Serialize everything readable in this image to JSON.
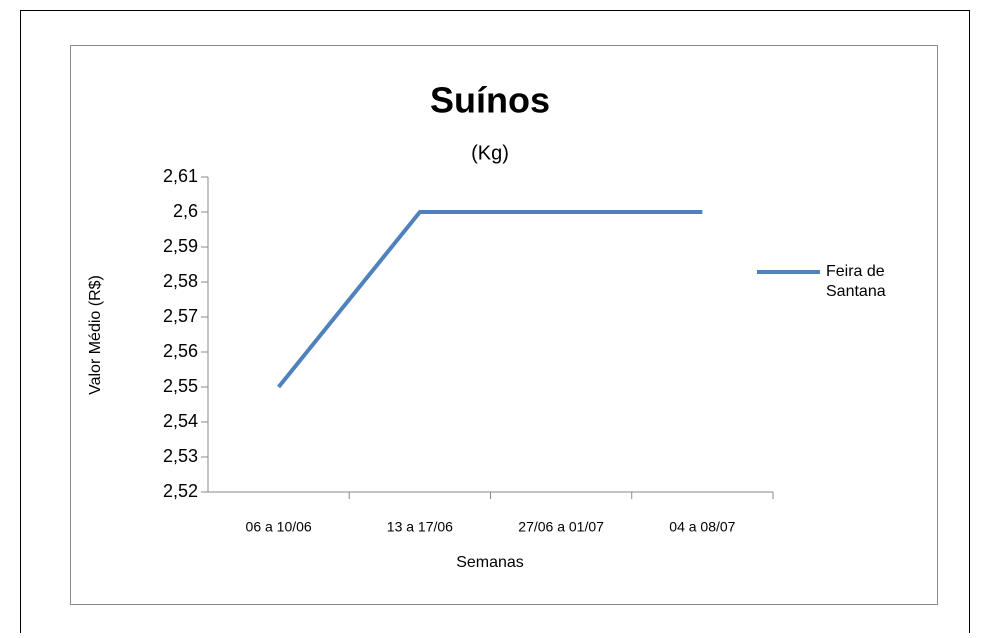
{
  "chart_data": {
    "type": "line",
    "title": "Suínos",
    "subtitle": "(Kg)",
    "x_label": "Semanas",
    "y_label": "Valor Médio (R$)",
    "categories": [
      "06 a 10/06",
      "13 a 17/06",
      "27/06 a 01/07",
      "04 a 08/07"
    ],
    "series": [
      {
        "name": "Feira de Santana",
        "color": "#4f81bd",
        "values": [
          2.55,
          2.6,
          2.6,
          2.6
        ]
      }
    ],
    "ylim": [
      2.52,
      2.61
    ],
    "yticks": [
      {
        "value": 2.52,
        "label": "2,52"
      },
      {
        "value": 2.53,
        "label": "2,53"
      },
      {
        "value": 2.54,
        "label": "2,54"
      },
      {
        "value": 2.55,
        "label": "2,55"
      },
      {
        "value": 2.56,
        "label": "2,56"
      },
      {
        "value": 2.57,
        "label": "2,57"
      },
      {
        "value": 2.58,
        "label": "2,58"
      },
      {
        "value": 2.59,
        "label": "2,59"
      },
      {
        "value": 2.6,
        "label": "2,6"
      },
      {
        "value": 2.61,
        "label": "2,61"
      }
    ],
    "grid": false,
    "legend": "right"
  }
}
